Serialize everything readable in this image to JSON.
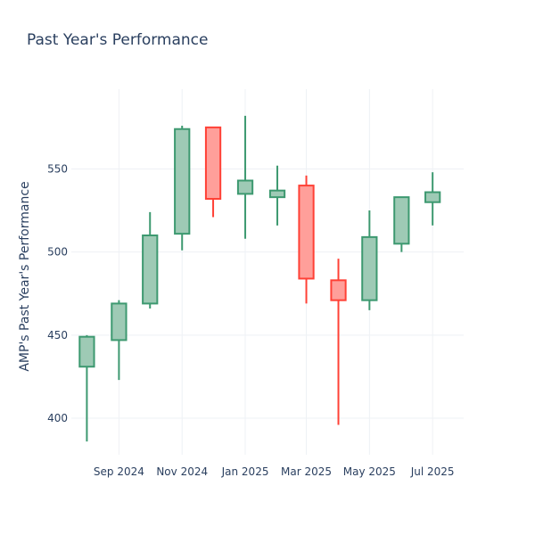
{
  "chart_data": {
    "type": "candlestick",
    "title": "Past Year's Performance",
    "xlabel": "",
    "ylabel": "AMP's Past Year's Performance",
    "ylim": [
      378,
      598
    ],
    "y_ticks": [
      400,
      450,
      500,
      550
    ],
    "x_ticks": [
      {
        "date": "2024-09-01",
        "label": "Sep 2024"
      },
      {
        "date": "2024-11-01",
        "label": "Nov 2024"
      },
      {
        "date": "2025-01-01",
        "label": "Jan 2025"
      },
      {
        "date": "2025-03-01",
        "label": "Mar 2025"
      },
      {
        "date": "2025-05-01",
        "label": "May 2025"
      },
      {
        "date": "2025-07-01",
        "label": "Jul 2025"
      }
    ],
    "xlim": [
      "2024-07-17",
      "2025-07-31"
    ],
    "increasing_color": "#3d9970",
    "increasing_fill": "#9ecab5",
    "decreasing_color": "#ff4136",
    "decreasing_fill": "#ff9f9a",
    "grid": true,
    "candles": [
      {
        "date": "2024-08-01",
        "open": 431,
        "high": 450,
        "low": 386,
        "close": 449
      },
      {
        "date": "2024-09-01",
        "open": 447,
        "high": 471,
        "low": 423,
        "close": 469
      },
      {
        "date": "2024-10-01",
        "open": 469,
        "high": 524,
        "low": 466,
        "close": 510
      },
      {
        "date": "2024-11-01",
        "open": 511,
        "high": 576,
        "low": 501,
        "close": 574
      },
      {
        "date": "2024-12-01",
        "open": 575,
        "high": 575,
        "low": 521,
        "close": 532
      },
      {
        "date": "2025-01-01",
        "open": 535,
        "high": 582,
        "low": 508,
        "close": 543
      },
      {
        "date": "2025-02-01",
        "open": 533,
        "high": 552,
        "low": 516,
        "close": 537
      },
      {
        "date": "2025-03-01",
        "open": 540,
        "high": 546,
        "low": 469,
        "close": 484
      },
      {
        "date": "2025-04-01",
        "open": 483,
        "high": 496,
        "low": 396,
        "close": 471
      },
      {
        "date": "2025-05-01",
        "open": 471,
        "high": 525,
        "low": 465,
        "close": 509
      },
      {
        "date": "2025-06-01",
        "open": 505,
        "high": 533,
        "low": 500,
        "close": 533
      },
      {
        "date": "2025-07-01",
        "open": 530,
        "high": 548,
        "low": 516,
        "close": 536
      }
    ]
  }
}
